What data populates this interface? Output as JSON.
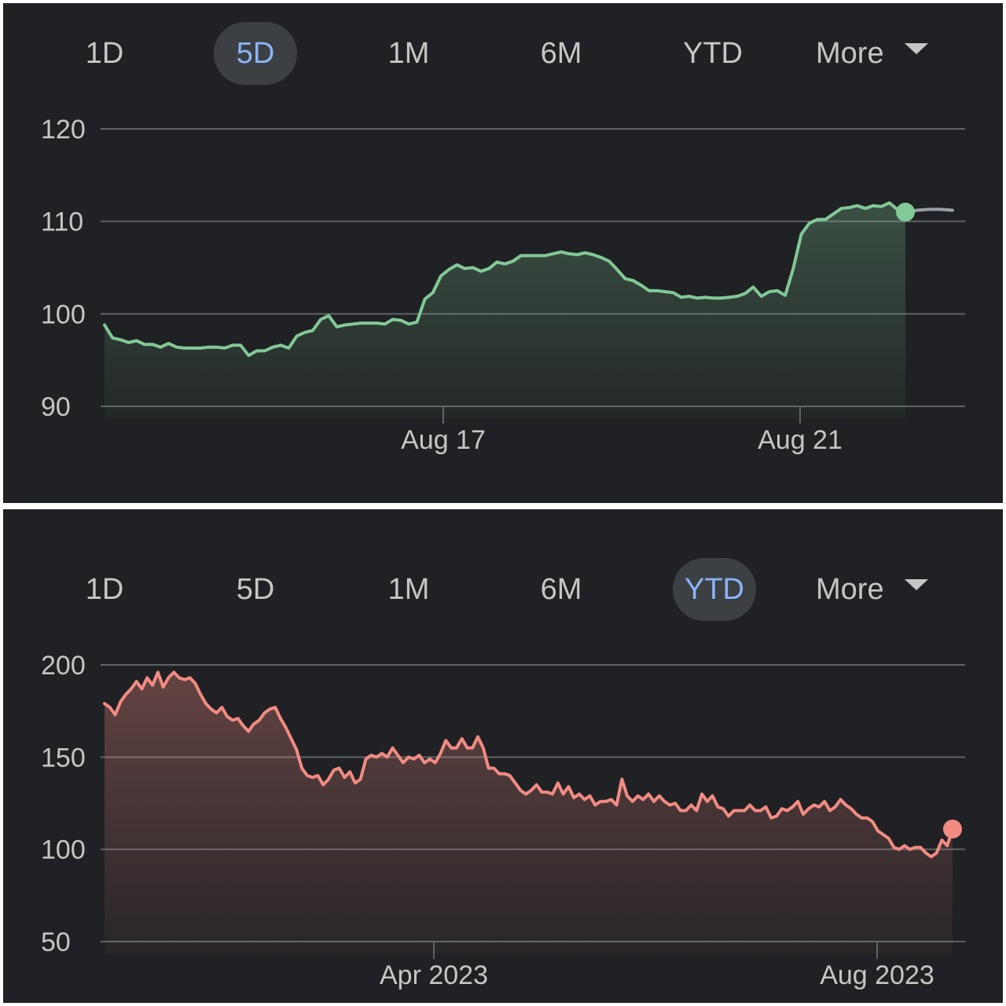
{
  "panels": [
    {
      "tabs": [
        {
          "label": "1D",
          "active": false
        },
        {
          "label": "5D",
          "active": true
        },
        {
          "label": "1M",
          "active": false
        },
        {
          "label": "6M",
          "active": false
        },
        {
          "label": "YTD",
          "active": false
        }
      ],
      "more_label": "More"
    },
    {
      "tabs": [
        {
          "label": "1D",
          "active": false
        },
        {
          "label": "5D",
          "active": false
        },
        {
          "label": "1M",
          "active": false
        },
        {
          "label": "6M",
          "active": false
        },
        {
          "label": "YTD",
          "active": true
        }
      ],
      "more_label": "More"
    }
  ],
  "colors": {
    "background": "#202124",
    "tab_active_bg": "#3c4043",
    "tab_active_text": "#8ab4f8",
    "tab_text": "#c4c7c5",
    "gridline": "#5f6368",
    "positive_line": "#81c995",
    "negative_line": "#f28b82",
    "after_hours_line": "#9aa0a6"
  },
  "icons": {
    "more_dropdown": "caret-down-icon"
  },
  "chart_data": [
    {
      "type": "area",
      "title": "",
      "xlabel": "",
      "ylabel": "",
      "ylim": [
        90,
        120
      ],
      "yticks": [
        90,
        100,
        110,
        120
      ],
      "xticks": [
        "Aug 17",
        "Aug 21"
      ],
      "grid": true,
      "series": [
        {
          "values": [
            98.8,
            97.4,
            97.2,
            96.9,
            97.1,
            96.7,
            96.7,
            96.4,
            96.8,
            96.4,
            96.3,
            96.3,
            96.3,
            96.4,
            96.4,
            96.3,
            96.6,
            96.6,
            95.5,
            96.0,
            96.0,
            96.4,
            96.6,
            96.3,
            97.6,
            98.0,
            98.2,
            99.4,
            99.8,
            98.6,
            98.8,
            98.9,
            99.0,
            99.0,
            99.0,
            98.9,
            99.4,
            99.3,
            98.9,
            99.1,
            101.6,
            102.3,
            104.1,
            104.8,
            105.3,
            104.9,
            105.0,
            104.6,
            104.9,
            105.6,
            105.4,
            105.7,
            106.3,
            106.3,
            106.3,
            106.3,
            106.5,
            106.7,
            106.5,
            106.4,
            106.6,
            106.4,
            106.1,
            105.7,
            104.8,
            103.8,
            103.6,
            103.1,
            102.5,
            102.5,
            102.4,
            102.3,
            101.8,
            101.9,
            101.7,
            101.8,
            101.7,
            101.7,
            101.8,
            101.9,
            102.2,
            102.9,
            101.9,
            102.4,
            102.5,
            102.0,
            104.9,
            108.6,
            109.8,
            110.2,
            110.2,
            110.8,
            111.4,
            111.5,
            111.7,
            111.4,
            111.7,
            111.6,
            112.0,
            111.3,
            111.0
          ]
        },
        {
          "name": "",
          "values": [
            111.0,
            111.2,
            111.3,
            111.3,
            111.2
          ]
        }
      ],
      "last_value": 111.0
    },
    {
      "type": "area",
      "title": "",
      "xlabel": "",
      "ylabel": "",
      "ylim": [
        50,
        200
      ],
      "yticks": [
        50,
        100,
        150,
        200
      ],
      "xticks": [
        "Apr 2023",
        "Aug 2023"
      ],
      "grid": true,
      "series": [
        {
          "values": [
            179,
            177,
            173,
            180,
            184,
            187,
            191,
            187,
            193,
            189,
            196,
            188,
            193,
            196,
            193,
            192,
            193,
            190,
            184,
            179,
            176,
            174,
            177,
            172,
            170,
            171,
            167,
            164,
            168,
            170,
            174,
            176,
            177,
            171,
            166,
            160,
            154,
            144,
            140,
            139,
            140,
            135,
            138,
            143,
            144,
            139,
            142,
            136,
            138,
            149,
            151,
            150,
            152,
            150,
            155,
            151,
            147,
            150,
            149,
            151,
            147,
            149,
            147,
            152,
            159,
            155,
            155,
            160,
            155,
            155,
            161,
            155,
            144,
            144,
            141,
            141,
            140,
            136,
            132,
            130,
            132,
            135,
            131,
            131,
            130,
            136,
            130,
            134,
            128,
            130,
            127,
            129,
            124,
            126,
            126,
            127,
            124,
            138,
            129,
            126,
            129,
            127,
            130,
            126,
            129,
            126,
            124,
            125,
            121,
            121,
            124,
            121,
            130,
            126,
            129,
            123,
            122,
            118,
            121,
            121,
            121,
            124,
            121,
            121,
            123,
            117,
            118,
            122,
            121,
            123,
            126,
            119,
            122,
            124,
            123,
            126,
            121,
            123,
            127,
            124,
            122,
            119,
            117,
            117,
            115,
            110,
            108,
            106,
            101,
            100,
            102,
            100,
            101,
            101,
            98,
            96,
            98,
            105,
            102,
            111
          ]
        }
      ],
      "last_value": 111
    }
  ]
}
